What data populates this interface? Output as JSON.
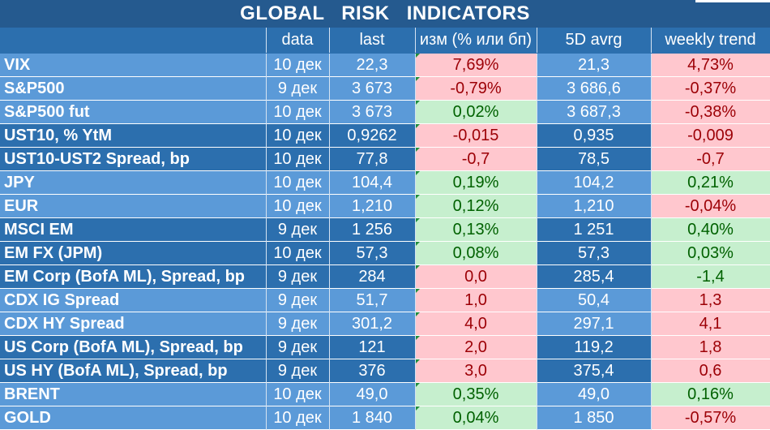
{
  "title": "GLOBAL RISK INDICATORS",
  "columns": [
    "",
    "data",
    "last",
    "изм (% или бп)",
    "5D avrg",
    "weekly trend"
  ],
  "colors": {
    "header_bg": "#255a8f",
    "band_light": "#5b9ad8",
    "band_dark": "#2c6fae",
    "positive_bg": "#c6efce",
    "positive_text": "#006100",
    "negative_bg": "#ffc7ce",
    "negative_text": "#9c0006"
  },
  "rows": [
    {
      "name": "VIX",
      "date": "10 дек",
      "last": "22,3",
      "change": "7,69%",
      "change_status": "neg",
      "avg": "21,3",
      "trend": "4,73%",
      "trend_status": "neg",
      "band": "ga",
      "group_start": true
    },
    {
      "name": "S&P500",
      "date": "9 дек",
      "last": "3 673",
      "change": "-0,79%",
      "change_status": "neg",
      "avg": "3 686,6",
      "trend": "-0,37%",
      "trend_status": "neg",
      "band": "ga",
      "group_start": false
    },
    {
      "name": "S&P500 fut",
      "date": "10 дек",
      "last": "3 673",
      "change": "0,02%",
      "change_status": "pos",
      "avg": "3 687,3",
      "trend": "-0,38%",
      "trend_status": "neg",
      "band": "ga",
      "group_start": false
    },
    {
      "name": "UST10, % YtM",
      "date": "10 дек",
      "last": "0,9262",
      "change": "-0,015",
      "change_status": "neg",
      "avg": "0,935",
      "trend": "-0,009",
      "trend_status": "neg",
      "band": "gb",
      "group_start": true
    },
    {
      "name": "UST10-UST2 Spread, bp",
      "date": "10 дек",
      "last": "77,8",
      "change": "-0,7",
      "change_status": "neg",
      "avg": "78,5",
      "trend": "-0,7",
      "trend_status": "neg",
      "band": "gb",
      "group_start": false
    },
    {
      "name": "JPY",
      "date": "10 дек",
      "last": "104,4",
      "change": "0,19%",
      "change_status": "pos",
      "avg": "104,2",
      "trend": "0,21%",
      "trend_status": "pos",
      "band": "ga",
      "group_start": true
    },
    {
      "name": "EUR",
      "date": "10 дек",
      "last": "1,210",
      "change": "0,12%",
      "change_status": "pos",
      "avg": "1,210",
      "trend": "-0,04%",
      "trend_status": "neg",
      "band": "ga",
      "group_start": false
    },
    {
      "name": "MSCI EM",
      "date": "9 дек",
      "last": "1 256",
      "change": "0,13%",
      "change_status": "pos",
      "avg": "1 251",
      "trend": "0,40%",
      "trend_status": "pos",
      "band": "gb",
      "group_start": true
    },
    {
      "name": "EM FX (JPM)",
      "date": "10 дек",
      "last": "57,3",
      "change": "0,08%",
      "change_status": "pos",
      "avg": "57,3",
      "trend": "0,03%",
      "trend_status": "pos",
      "band": "gb",
      "group_start": false
    },
    {
      "name": "EM Corp (BofA ML), Spread, bp",
      "date": "9 дек",
      "last": "284",
      "change": "0,0",
      "change_status": "neg",
      "avg": "285,4",
      "trend": "-1,4",
      "trend_status": "pos",
      "band": "gb",
      "group_start": false
    },
    {
      "name": "CDX IG Spread",
      "date": "9 дек",
      "last": "51,7",
      "change": "1,0",
      "change_status": "neg",
      "avg": "50,4",
      "trend": "1,3",
      "trend_status": "neg",
      "band": "ga",
      "group_start": true
    },
    {
      "name": "CDX HY Spread",
      "date": "9 дек",
      "last": "301,2",
      "change": "4,0",
      "change_status": "neg",
      "avg": "297,1",
      "trend": "4,1",
      "trend_status": "neg",
      "band": "ga",
      "group_start": false
    },
    {
      "name": "US Corp (BofA ML), Spread, bp",
      "date": "9 дек",
      "last": "121",
      "change": "2,0",
      "change_status": "neg",
      "avg": "119,2",
      "trend": "1,8",
      "trend_status": "neg",
      "band": "gb",
      "group_start": true
    },
    {
      "name": "US HY (BofA ML), Spread, bp",
      "date": "9 дек",
      "last": "376",
      "change": "3,0",
      "change_status": "neg",
      "avg": "375,4",
      "trend": "0,6",
      "trend_status": "neg",
      "band": "gb",
      "group_start": false
    },
    {
      "name": "BRENT",
      "date": "10 дек",
      "last": "49,0",
      "change": "0,35%",
      "change_status": "pos",
      "avg": "49,0",
      "trend": "0,16%",
      "trend_status": "pos",
      "band": "ga",
      "group_start": true
    },
    {
      "name": "GOLD",
      "date": "10 дек",
      "last": "1 840",
      "change": "0,04%",
      "change_status": "pos",
      "avg": "1 850",
      "trend": "-0,57%",
      "trend_status": "neg",
      "band": "ga",
      "group_start": false
    }
  ]
}
